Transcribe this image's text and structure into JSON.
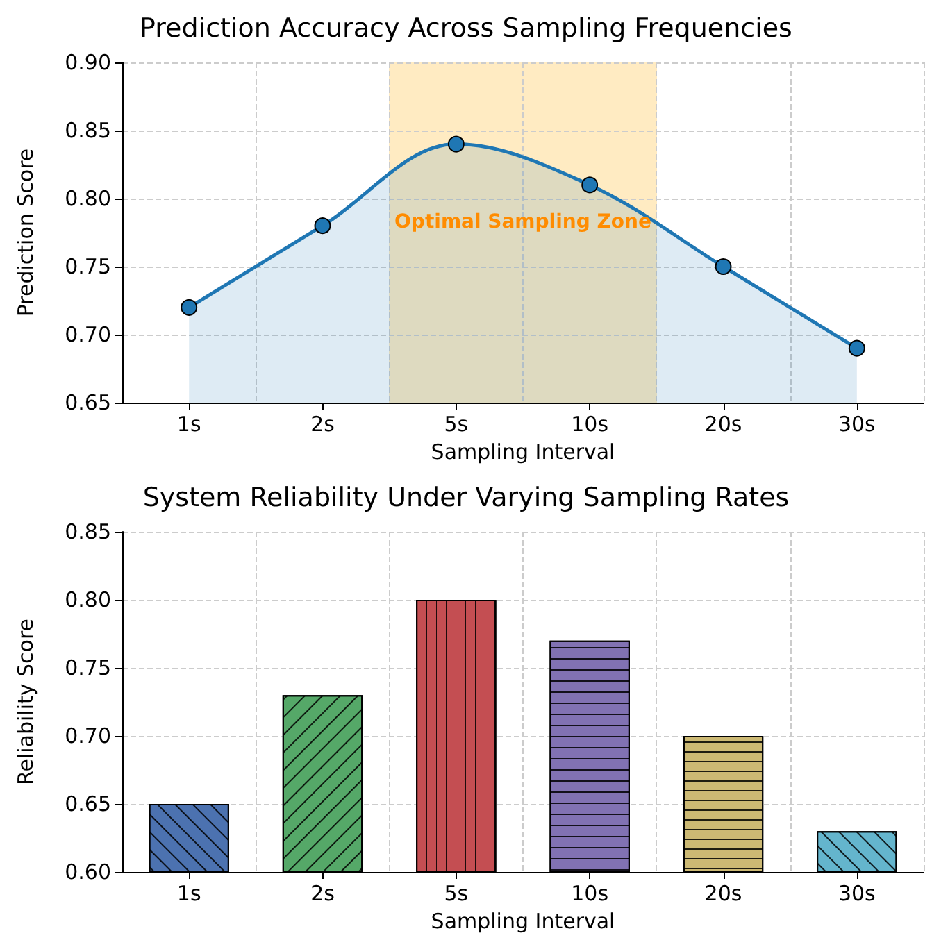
{
  "chart_data": [
    {
      "type": "area",
      "title": "Prediction Accuracy Across Sampling Frequencies",
      "xlabel": "Sampling Interval",
      "ylabel": "Prediction Score",
      "categories": [
        "1s",
        "2s",
        "5s",
        "10s",
        "20s",
        "30s"
      ],
      "series": [
        {
          "color": "#1f77b4",
          "values": [
            0.72,
            0.78,
            0.84,
            0.81,
            0.75,
            0.69
          ]
        }
      ],
      "ylim": [
        0.65,
        0.9
      ],
      "yticks": [
        0.65,
        {
          "value": 0.7,
          "label": "0.70"
        },
        0.75,
        {
          "value": 0.8,
          "label": "0.80"
        },
        0.85,
        {
          "value": 0.9,
          "label": "0.90"
        }
      ],
      "grid": true,
      "marker": "circle",
      "line_style": "solid",
      "annotations": [
        "Optimal Sampling Zone"
      ]
    },
    {
      "type": "bar",
      "title": "System Reliability Under Varying Sampling Rates",
      "xlabel": "Sampling Interval",
      "ylabel": "Reliability Score",
      "categories": [
        "1s",
        "2s",
        "5s",
        "10s",
        "20s",
        "30s"
      ],
      "values": [
        0.65,
        0.73,
        0.8,
        0.77,
        0.7,
        0.63
      ],
      "colors": [
        "#4c72b0",
        "#55a868",
        "#c44e52",
        "#8172b2",
        "#ccb974",
        "#64b5cd"
      ],
      "ylim": [
        0.6,
        0.85
      ],
      "yticks": [
        {
          "value": 0.6,
          "label": "0.60"
        },
        0.65,
        {
          "value": 0.7,
          "label": "0.70"
        },
        0.75,
        {
          "value": 0.8,
          "label": "0.80"
        },
        0.85
      ],
      "grid": true
    }
  ]
}
